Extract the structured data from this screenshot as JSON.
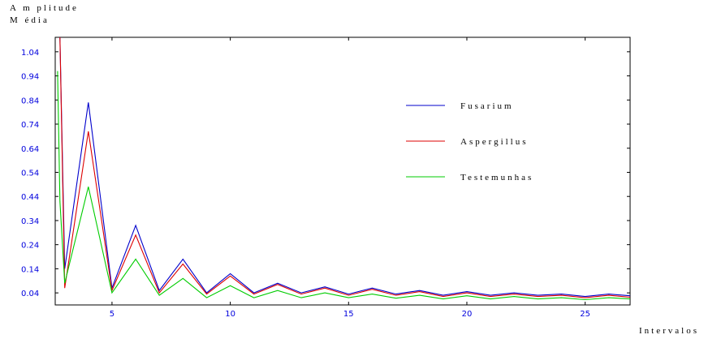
{
  "chart_data": {
    "type": "line",
    "title": "",
    "ylabel_lines": [
      "A m plitude",
      "M édia"
    ],
    "xlabel": "Intervalos",
    "xlim": [
      2.6,
      26.9
    ],
    "ylim": [
      -0.01,
      1.1
    ],
    "x_ticks": [
      5,
      10,
      15,
      20,
      25
    ],
    "y_ticks": [
      1.04,
      0.94,
      0.84,
      0.74,
      0.64,
      0.54,
      0.44,
      0.34,
      0.24,
      0.14,
      0.04
    ],
    "y_tick_labels": [
      "1.04",
      "0.94",
      "0.84",
      "0.74",
      "0.64",
      "0.54",
      "0.44",
      "0.34",
      "0.24",
      "0.14",
      "0.04"
    ],
    "x_tick_labels": [
      "5",
      "10",
      "15",
      "20",
      "25"
    ],
    "legend_position": "top-right",
    "series": [
      {
        "name": "Fusarium",
        "color": "#0000cc",
        "x": [
          2.8,
          3,
          4,
          5,
          6,
          7,
          8,
          9,
          10,
          11,
          12,
          13,
          14,
          15,
          16,
          17,
          18,
          19,
          20,
          21,
          22,
          23,
          24,
          25,
          26,
          26.9
        ],
        "y": [
          1.1,
          0.14,
          0.83,
          0.06,
          0.32,
          0.05,
          0.18,
          0.04,
          0.12,
          0.04,
          0.08,
          0.04,
          0.065,
          0.035,
          0.06,
          0.035,
          0.05,
          0.03,
          0.045,
          0.03,
          0.04,
          0.03,
          0.035,
          0.025,
          0.035,
          0.028
        ]
      },
      {
        "name": "Aspergillus",
        "color": "#dd0000",
        "x": [
          2.8,
          3,
          4,
          5,
          6,
          7,
          8,
          9,
          10,
          11,
          12,
          13,
          14,
          15,
          16,
          17,
          18,
          19,
          20,
          21,
          22,
          23,
          24,
          25,
          26,
          26.9
        ],
        "y": [
          1.1,
          0.06,
          0.71,
          0.05,
          0.28,
          0.04,
          0.16,
          0.035,
          0.11,
          0.035,
          0.075,
          0.035,
          0.06,
          0.03,
          0.055,
          0.03,
          0.045,
          0.025,
          0.04,
          0.025,
          0.035,
          0.025,
          0.03,
          0.02,
          0.03,
          0.022
        ]
      },
      {
        "name": "Testemunhas",
        "color": "#00cc00",
        "x": [
          2.7,
          2.8,
          3,
          4,
          5,
          6,
          7,
          8,
          9,
          10,
          11,
          12,
          13,
          14,
          15,
          16,
          17,
          18,
          19,
          20,
          21,
          22,
          23,
          24,
          25,
          26,
          26.9
        ],
        "y": [
          0.96,
          0.42,
          0.08,
          0.48,
          0.04,
          0.18,
          0.03,
          0.1,
          0.02,
          0.07,
          0.02,
          0.05,
          0.02,
          0.04,
          0.02,
          0.035,
          0.018,
          0.03,
          0.015,
          0.028,
          0.015,
          0.025,
          0.015,
          0.02,
          0.012,
          0.02,
          0.015
        ]
      }
    ]
  }
}
